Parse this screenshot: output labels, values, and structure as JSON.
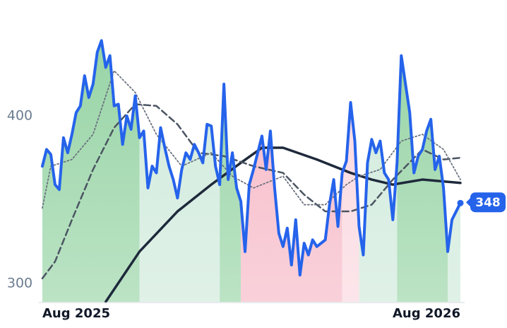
{
  "chart_data": {
    "type": "line",
    "xlim": [
      0,
      99
    ],
    "ylim": [
      289,
      452
    ],
    "yticks": [
      300,
      400
    ],
    "xticks": [
      {
        "value": 0,
        "label": "Aug 2025"
      },
      {
        "value": 99,
        "label": "Aug 2026"
      }
    ],
    "regions": [
      {
        "from": 0,
        "to": 23,
        "color": "#97d4a5"
      },
      {
        "from": 23,
        "to": 42,
        "color": "#cfeadb"
      },
      {
        "from": 42,
        "to": 47,
        "color": "#97d4a5"
      },
      {
        "from": 47,
        "to": 71,
        "color": "#f6b8c6"
      },
      {
        "from": 71,
        "to": 75,
        "color": "#fad7df"
      },
      {
        "from": 75,
        "to": 84,
        "color": "#cfeadb"
      },
      {
        "from": 84,
        "to": 96,
        "color": "#97d4a5"
      },
      {
        "from": 96,
        "to": 99,
        "color": "#cfeadb"
      }
    ],
    "series": [
      {
        "color": "#2563eb",
        "values": [
          370,
          380,
          377,
          359,
          356,
          387,
          378,
          389,
          402,
          406,
          424,
          411,
          419,
          438,
          445,
          429,
          436,
          406,
          407,
          383,
          400,
          392,
          412,
          387,
          391,
          357,
          370,
          366,
          393,
          381,
          370,
          362,
          351,
          368,
          378,
          374,
          383,
          378,
          372,
          395,
          394,
          370,
          359,
          419,
          362,
          378,
          357,
          349,
          319,
          359,
          368,
          378,
          388,
          368,
          391,
          357,
          330,
          322,
          333,
          311,
          338,
          305,
          324,
          317,
          326,
          322,
          324,
          326,
          347,
          362,
          334,
          366,
          373,
          408,
          385,
          334,
          317,
          372,
          386,
          378,
          385,
          366,
          362,
          338,
          372,
          436,
          419,
          402,
          366,
          376,
          380,
          391,
          398,
          368,
          376,
          357,
          319,
          338,
          343,
          348
        ]
      },
      {
        "color": "#1e293b",
        "style": "solid",
        "x": [
          15,
          23,
          32,
          40,
          47,
          52,
          57,
          65,
          73,
          78,
          83,
          90,
          99
        ],
        "values": [
          289,
          319,
          343,
          359,
          372,
          381,
          381,
          374,
          366,
          362,
          359,
          362,
          360
        ]
      },
      {
        "color": "#4b5563",
        "style": "dashed",
        "x": [
          0,
          3,
          7,
          12,
          17,
          22,
          27,
          32,
          37,
          43,
          50,
          57,
          62,
          67,
          73,
          78,
          83,
          90,
          95,
          99
        ],
        "values": [
          303,
          313,
          338,
          368,
          393,
          407,
          406,
          395,
          378,
          376,
          370,
          366,
          353,
          343,
          343,
          347,
          362,
          380,
          374,
          375
        ]
      },
      {
        "color": "#6b7280",
        "style": "dotted",
        "x": [
          0,
          2,
          7,
          12,
          17,
          22,
          27,
          33,
          40,
          45,
          50,
          57,
          62,
          67,
          72,
          75,
          80,
          85,
          90,
          95,
          99
        ],
        "values": [
          345,
          370,
          374,
          389,
          427,
          414,
          389,
          370,
          378,
          364,
          357,
          364,
          347,
          347,
          359,
          364,
          368,
          385,
          389,
          380,
          362
        ]
      }
    ]
  }
}
